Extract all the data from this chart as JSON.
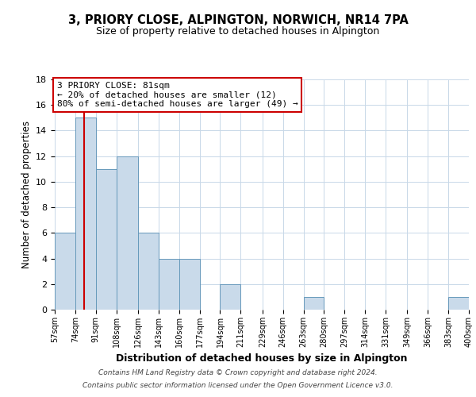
{
  "title": "3, PRIORY CLOSE, ALPINGTON, NORWICH, NR14 7PA",
  "subtitle": "Size of property relative to detached houses in Alpington",
  "xlabel": "Distribution of detached houses by size in Alpington",
  "ylabel": "Number of detached properties",
  "bar_edges": [
    57,
    74,
    91,
    108,
    126,
    143,
    160,
    177,
    194,
    211,
    229,
    246,
    263,
    280,
    297,
    314,
    331,
    349,
    366,
    383,
    400
  ],
  "bar_counts": [
    6,
    15,
    11,
    12,
    6,
    4,
    4,
    0,
    2,
    0,
    0,
    0,
    1,
    0,
    0,
    0,
    0,
    0,
    0,
    1
  ],
  "bar_color": "#c9daea",
  "bar_edgecolor": "#6699bb",
  "vline_x": 81,
  "vline_color": "#cc0000",
  "ylim": [
    0,
    18
  ],
  "yticks": [
    0,
    2,
    4,
    6,
    8,
    10,
    12,
    14,
    16,
    18
  ],
  "tick_labels": [
    "57sqm",
    "74sqm",
    "91sqm",
    "108sqm",
    "126sqm",
    "143sqm",
    "160sqm",
    "177sqm",
    "194sqm",
    "211sqm",
    "229sqm",
    "246sqm",
    "263sqm",
    "280sqm",
    "297sqm",
    "314sqm",
    "331sqm",
    "349sqm",
    "366sqm",
    "383sqm",
    "400sqm"
  ],
  "annotation_title": "3 PRIORY CLOSE: 81sqm",
  "annotation_line1": "← 20% of detached houses are smaller (12)",
  "annotation_line2": "80% of semi-detached houses are larger (49) →",
  "annotation_box_color": "#ffffff",
  "annotation_box_edgecolor": "#cc0000",
  "footnote1": "Contains HM Land Registry data © Crown copyright and database right 2024.",
  "footnote2": "Contains public sector information licensed under the Open Government Licence v3.0.",
  "bg_color": "#ffffff",
  "grid_color": "#c8d8e8"
}
